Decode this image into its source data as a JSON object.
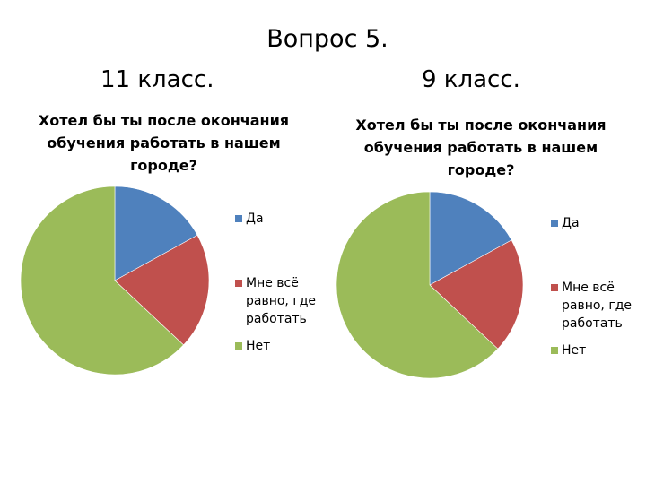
{
  "slide": {
    "title": "Вопрос 5."
  },
  "chart_data": [
    {
      "type": "pie",
      "group_title": "11 класс.",
      "title": "Хотел бы ты после окончания обучения работать в нашем городе?",
      "categories": [
        "Да",
        "Мне всё равно, где работать",
        "Нет"
      ],
      "values": [
        17,
        20,
        63
      ],
      "colors": [
        "#4F81BD",
        "#C0504D",
        "#9BBB59"
      ],
      "legend_position": "right"
    },
    {
      "type": "pie",
      "group_title": "9 класс.",
      "title": "Хотел бы ты после окончания обучения работать в нашем городе?",
      "categories": [
        "Да",
        "Мне всё равно, где работать",
        "Нет"
      ],
      "values": [
        17,
        20,
        63
      ],
      "colors": [
        "#4F81BD",
        "#C0504D",
        "#9BBB59"
      ],
      "legend_position": "right"
    }
  ]
}
